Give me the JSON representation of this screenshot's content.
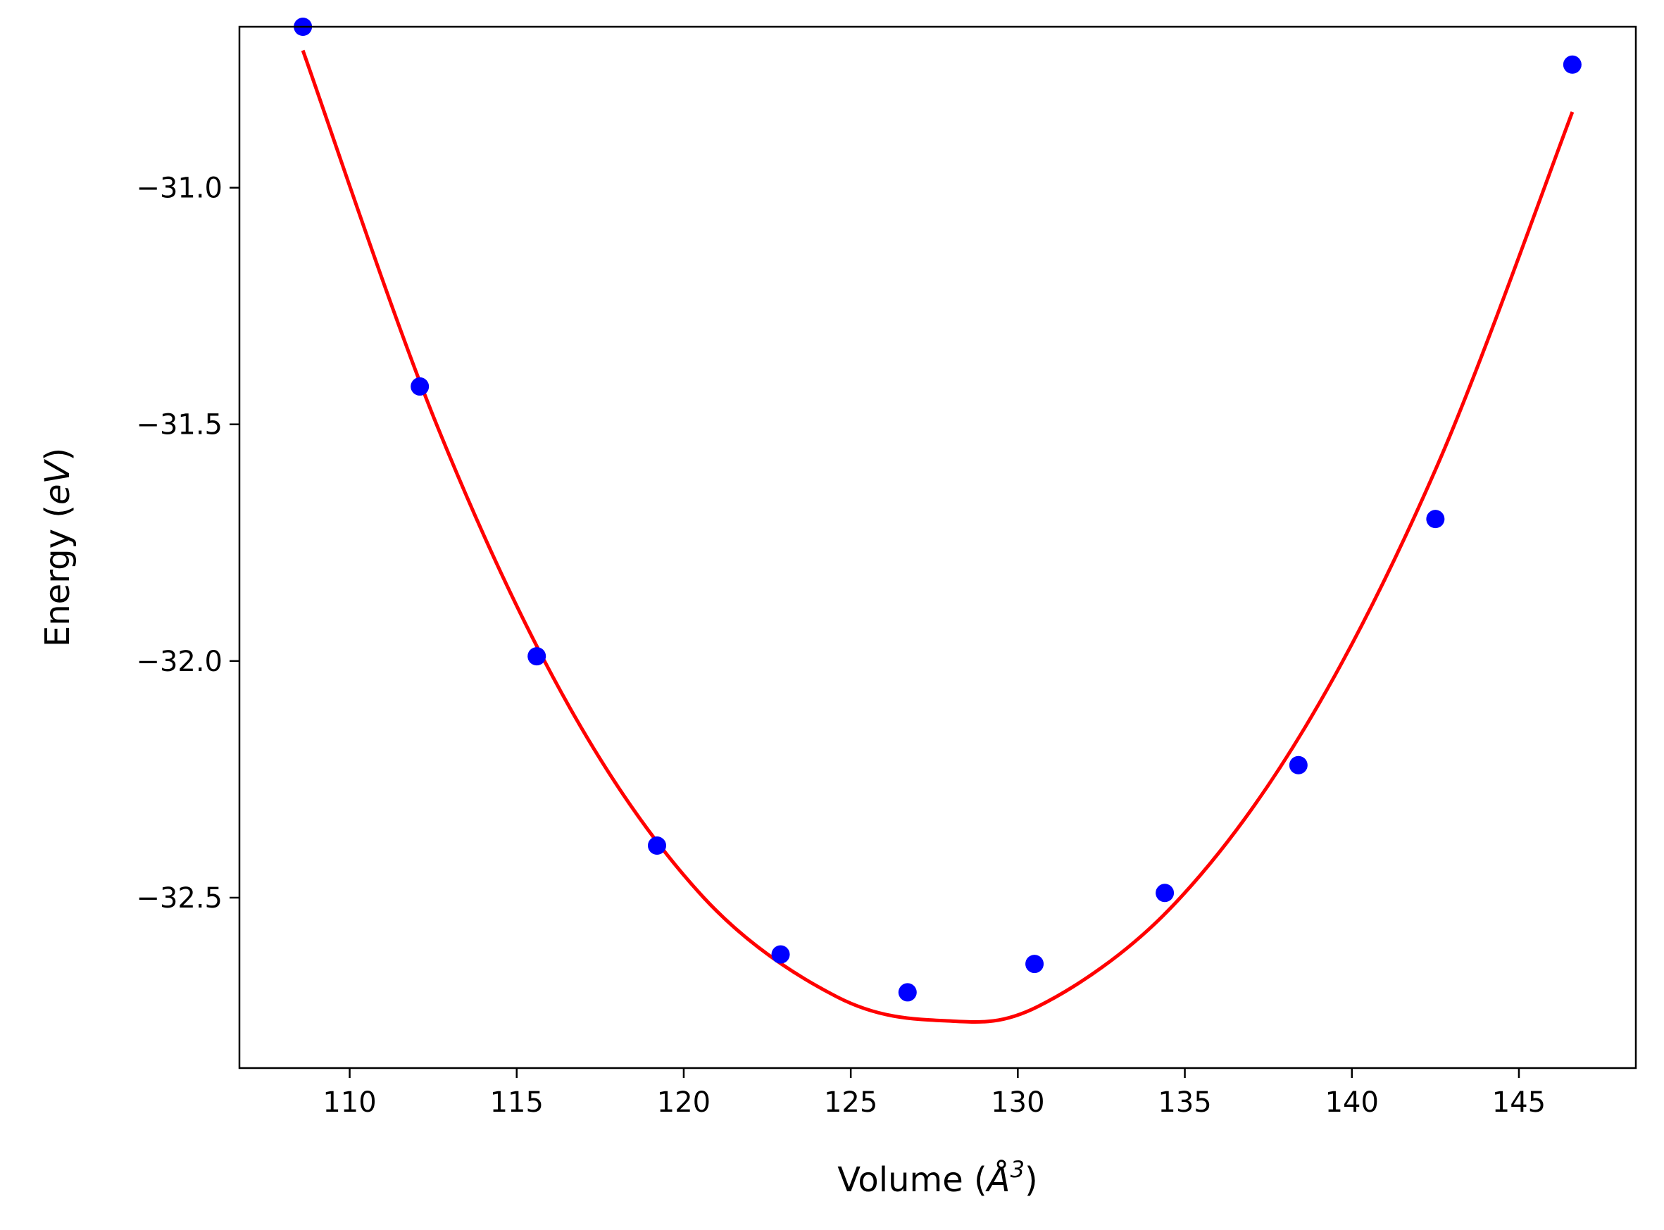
{
  "chart_data": {
    "type": "scatter",
    "xlabel": "Volume (Å³)",
    "ylabel": "Energy (eV)",
    "xlabel_parts": {
      "prefix": "Volume (",
      "symbol": "Å",
      "power": "3",
      "suffix": ")"
    },
    "ylabel_parts": {
      "prefix": "Energy (",
      "unit": "eV",
      "suffix": ")"
    },
    "xlim": [
      106.7,
      148.5
    ],
    "ylim": [
      -32.86,
      -30.66
    ],
    "x_ticks": [
      110,
      115,
      120,
      125,
      130,
      135,
      140,
      145
    ],
    "x_tick_labels": [
      "110",
      "115",
      "120",
      "125",
      "130",
      "135",
      "140",
      "145"
    ],
    "y_ticks": [
      -31.0,
      -31.5,
      -32.0,
      -32.5
    ],
    "y_tick_labels": [
      "−31.0",
      "−31.5",
      "−32.0",
      "−32.5"
    ],
    "grid": false,
    "series": [
      {
        "kind": "points",
        "color": "#0000ff",
        "x": [
          108.6,
          112.1,
          115.6,
          119.2,
          122.9,
          126.7,
          130.5,
          134.4,
          138.4,
          142.5,
          146.6
        ],
        "y": [
          -30.66,
          -31.42,
          -31.99,
          -32.39,
          -32.62,
          -32.7,
          -32.64,
          -32.49,
          -32.22,
          -31.7,
          -30.74
        ]
      },
      {
        "kind": "fit-curve",
        "color": "#ff0000",
        "x": [
          108.6,
          112.6,
          116.6,
          120.6,
          124.6,
          127.8,
          130.6,
          134.6,
          138.6,
          142.6,
          146.6
        ],
        "y": [
          -30.71,
          -31.5,
          -32.1,
          -32.5,
          -32.71,
          -32.76,
          -32.73,
          -32.52,
          -32.14,
          -31.58,
          -30.84
        ]
      }
    ]
  }
}
